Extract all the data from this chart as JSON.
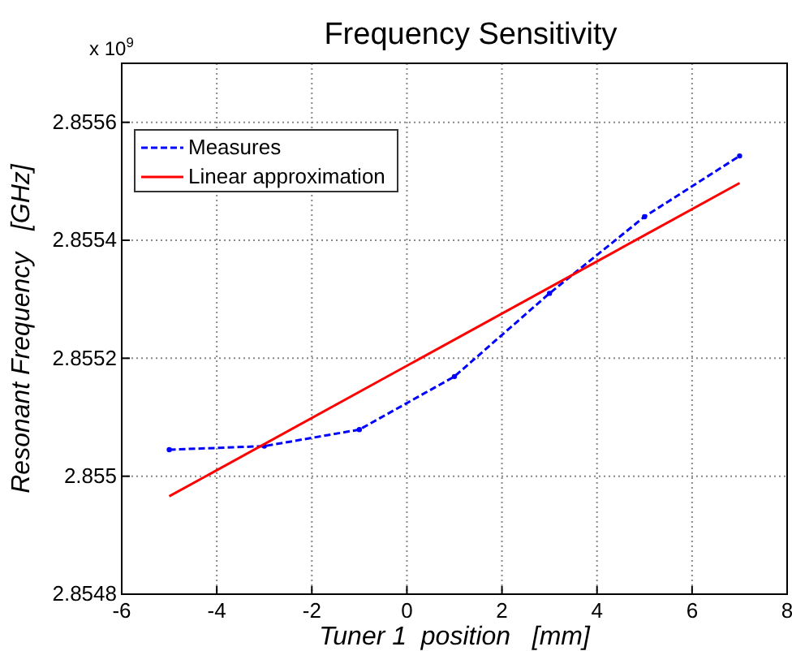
{
  "chart_data": {
    "type": "line",
    "title": "Frequency Sensitivity",
    "xlabel": "Tuner 1  position   [mm]",
    "ylabel": "Resonant Frequency   [GHz]",
    "annotations": [
      "x 10$^{9}$"
    ],
    "x": [
      -5,
      -3,
      -1,
      1,
      3,
      5,
      7
    ],
    "series": [
      {
        "name": "Measures",
        "color": "#0000ff",
        "line_style": "dashed",
        "marker": "circle",
        "values": [
          2.855045,
          2.855051,
          2.855079,
          2.855169,
          2.85531,
          2.85544,
          2.855543
        ]
      },
      {
        "name": "Linear approximation",
        "color": "#ff0000",
        "line_style": "solid",
        "marker": "none",
        "x": [
          -5,
          7
        ],
        "values": [
          2.854966,
          2.855497
        ]
      }
    ],
    "xlim": [
      -6,
      8
    ],
    "xticks": [
      -6,
      -4,
      -2,
      0,
      2,
      4,
      6,
      8
    ],
    "ylim": [
      2.8548,
      2.8557
    ],
    "yticks": [
      2.8548,
      2.855,
      2.8552,
      2.8554,
      2.8556
    ],
    "grid": true,
    "legend": "top left"
  }
}
